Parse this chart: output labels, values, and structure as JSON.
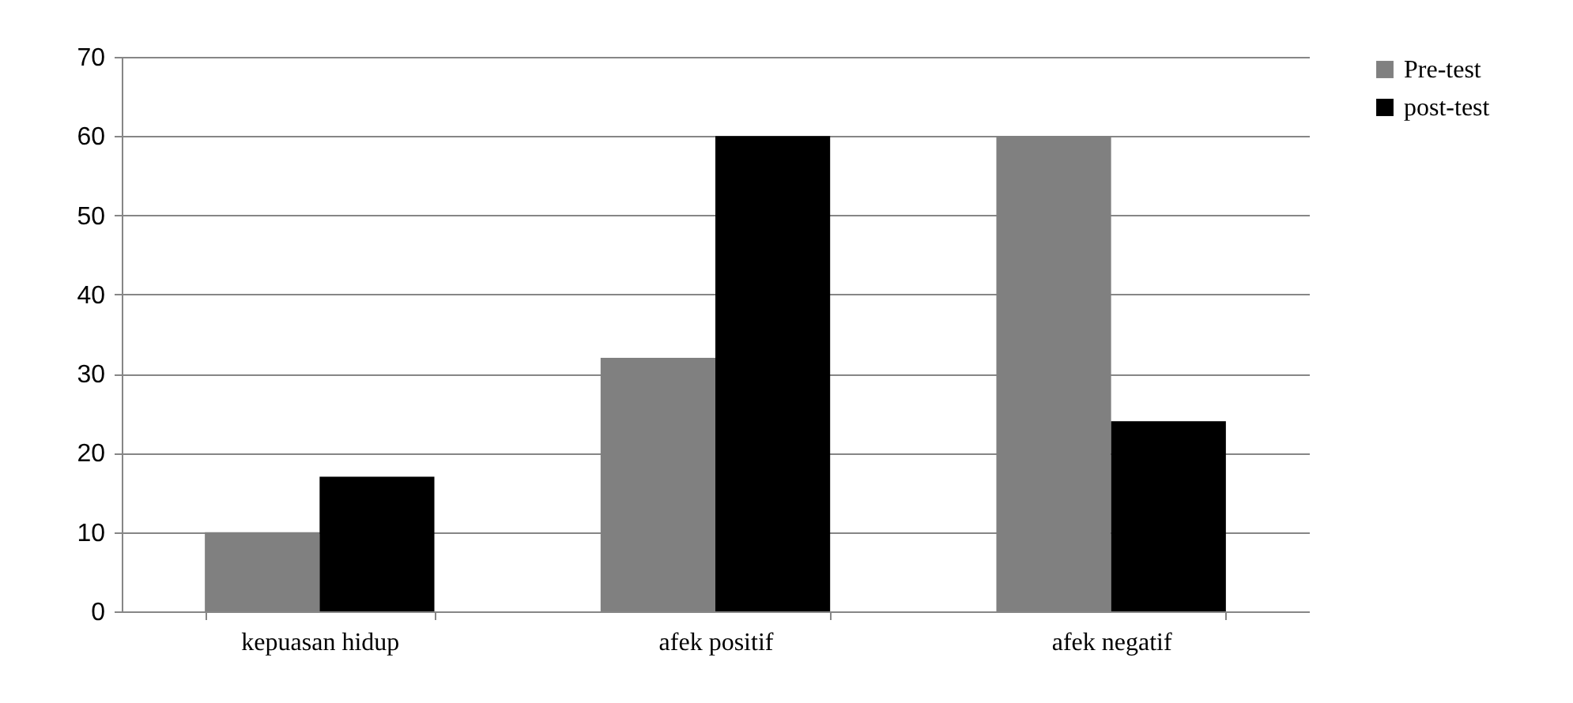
{
  "chart_data": {
    "type": "bar",
    "categories": [
      "kepuasan hidup",
      "afek positif",
      "afek negatif"
    ],
    "series": [
      {
        "name": "Pre-test",
        "color": "#808080",
        "values": [
          10,
          32,
          60
        ]
      },
      {
        "name": "post-test",
        "color": "#000000",
        "values": [
          17,
          60,
          24
        ]
      }
    ],
    "ylim": [
      0,
      70
    ],
    "yticks": [
      0,
      10,
      20,
      30,
      40,
      50,
      60,
      70
    ],
    "grid": "y",
    "legend": "right"
  }
}
